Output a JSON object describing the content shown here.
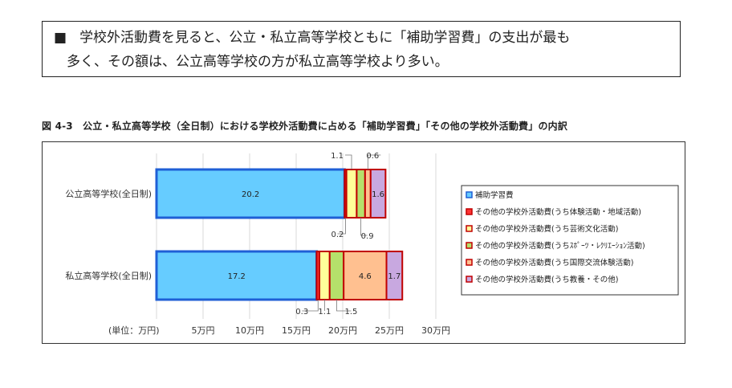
{
  "summary": {
    "bullet": "■",
    "line1": "学校外活動費を見ると、公立・私立高等学校ともに「補助学習費」の支出が最も",
    "line2": "多く、その額は、公立高等学校の方が私立高等学校より多い。"
  },
  "figure": {
    "title": "図 4-3　公立・私立高等学校（全日制）における学校外活動費に占める「補助学習費」「その他の学校外活動費」の内訳"
  },
  "chart_data": {
    "type": "bar",
    "orientation": "horizontal",
    "stacked": true,
    "unit_label": "(単位：万円)",
    "categories": [
      "公立高等学校(全日制)",
      "私立高等学校(全日制)"
    ],
    "x_ticks": [
      "5万円",
      "10万円",
      "15万円",
      "20万円",
      "25万円",
      "30万円"
    ],
    "xlim": [
      0,
      30
    ],
    "grid": true,
    "legend_position": "right",
    "series": [
      {
        "name": "補助学習費",
        "values": [
          20.2,
          17.2
        ],
        "color": "#66CCFF",
        "stroke": "#1F5FD6"
      },
      {
        "name": "その他の学校外活動費(うち体験活動・地域活動)",
        "values": [
          0.2,
          0.3
        ],
        "color": "#FF3333",
        "stroke": "#C00000"
      },
      {
        "name": "その他の学校外活動費(うち芸術文化活動)",
        "values": [
          1.1,
          1.1
        ],
        "color": "#FFFF99",
        "stroke": "#C00000"
      },
      {
        "name": "その他の学校外活動費(うちｽﾎﾟｰﾂ・ﾚｸﾘｴｰｼｮﾝ活動)",
        "values": [
          0.9,
          1.5
        ],
        "color": "#B5E06B",
        "stroke": "#C00000"
      },
      {
        "name": "その他の学校外活動費(うち国際交流体験活動)",
        "values": [
          0.6,
          4.6
        ],
        "color": "#FFC090",
        "stroke": "#C00000"
      },
      {
        "name": "その他の学校外活動費(うち教養・その他)",
        "values": [
          1.6,
          1.7
        ],
        "color": "#C8A8E0",
        "stroke": "#C00000"
      }
    ],
    "annotations": [
      {
        "label": "1.1",
        "row": 0,
        "series": 2
      },
      {
        "label": "0.6",
        "row": 0,
        "series": 4
      },
      {
        "label": "0.2",
        "row": 0,
        "series": 1
      },
      {
        "label": "0.9",
        "row": 0,
        "series": 3
      },
      {
        "label": "0.3",
        "row": 1,
        "series": 1
      },
      {
        "label": "1.1",
        "row": 1,
        "series": 2
      },
      {
        "label": "1.5",
        "row": 1,
        "series": 3
      }
    ]
  }
}
